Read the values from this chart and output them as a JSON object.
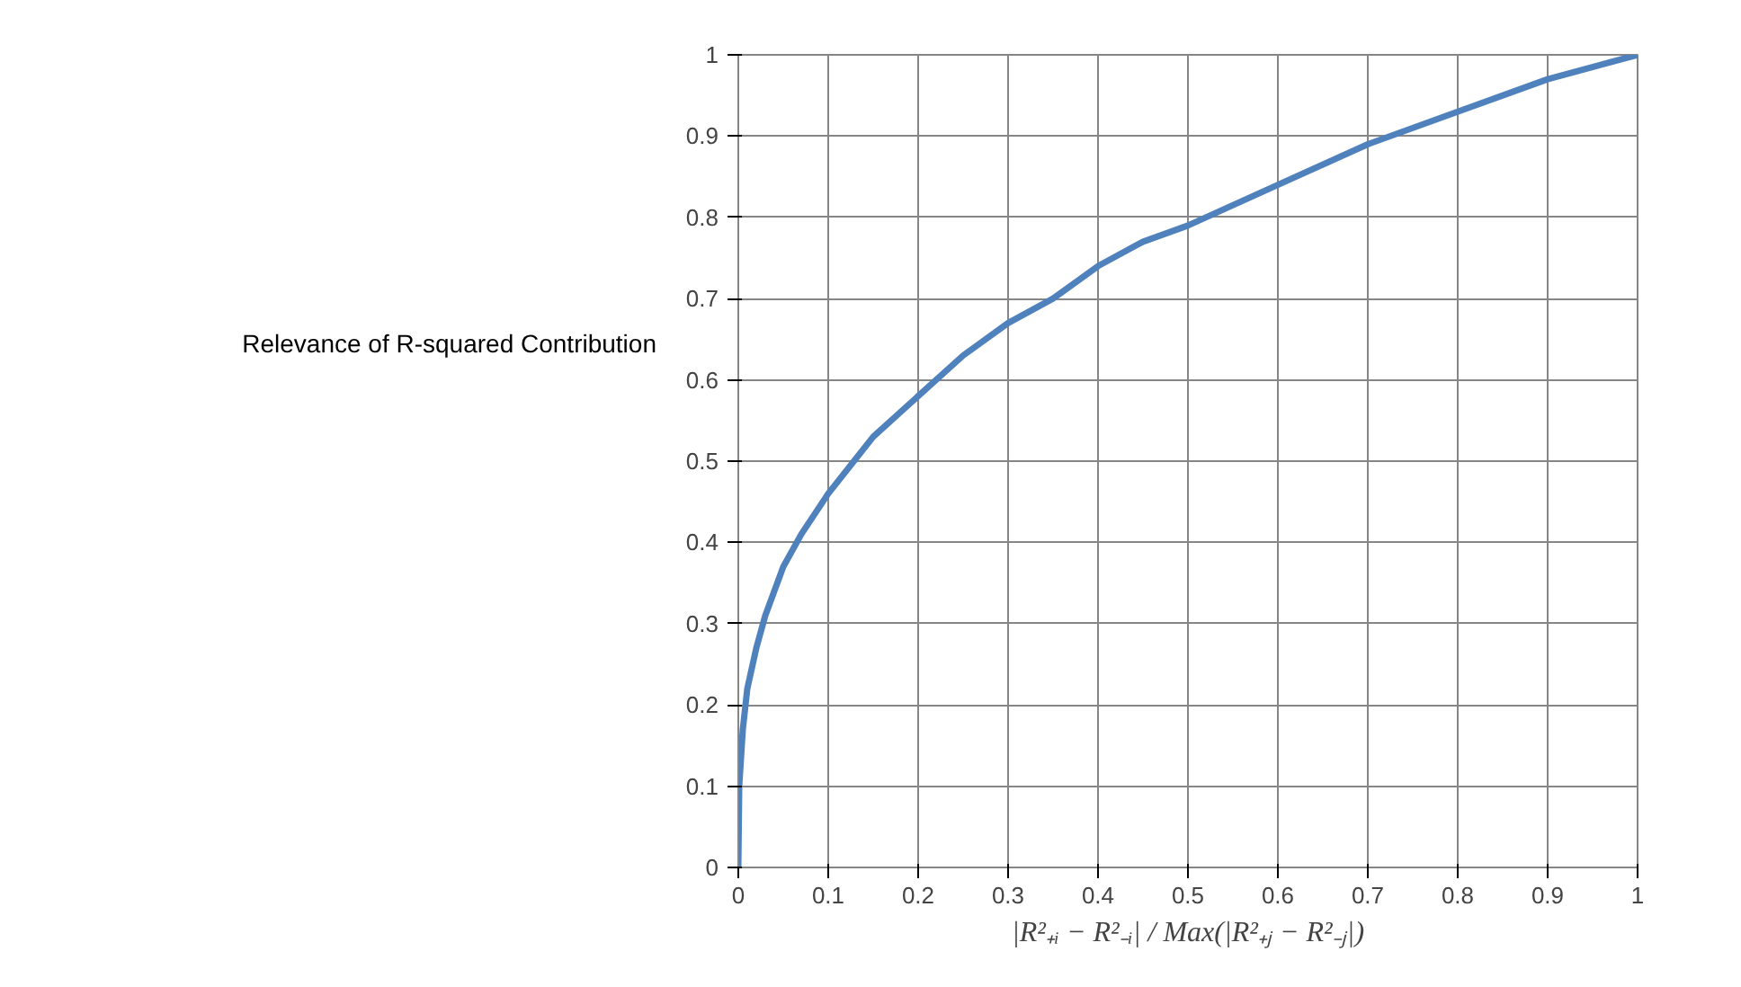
{
  "chart_data": {
    "type": "line",
    "ylabel": "Relevance of R-squared Contribution",
    "xlabel": "|R²₊ᵢ − R²₋ᵢ| / Max(|R²₊ⱼ − R²₋ⱼ|)",
    "x": [
      0,
      0.001,
      0.005,
      0.01,
      0.02,
      0.03,
      0.05,
      0.07,
      0.1,
      0.15,
      0.2,
      0.25,
      0.3,
      0.35,
      0.4,
      0.45,
      0.5,
      0.6,
      0.7,
      0.8,
      0.9,
      1
    ],
    "series": [
      {
        "color": "#4f81bd",
        "values": [
          0,
          0.1,
          0.17,
          0.22,
          0.27,
          0.31,
          0.37,
          0.41,
          0.46,
          0.53,
          0.58,
          0.63,
          0.67,
          0.7,
          0.74,
          0.77,
          0.79,
          0.84,
          0.89,
          0.93,
          0.97,
          1
        ]
      }
    ],
    "xlim": [
      0,
      1
    ],
    "ylim": [
      0,
      1
    ],
    "xticks": [
      0,
      0.1,
      0.2,
      0.3,
      0.4,
      0.5,
      0.6,
      0.7,
      0.8,
      0.9,
      1
    ],
    "yticks": [
      0,
      0.1,
      0.2,
      0.3,
      0.4,
      0.5,
      0.6,
      0.7,
      0.8,
      0.9,
      1
    ],
    "grid": true,
    "marker": "none",
    "line_style": "solid"
  }
}
